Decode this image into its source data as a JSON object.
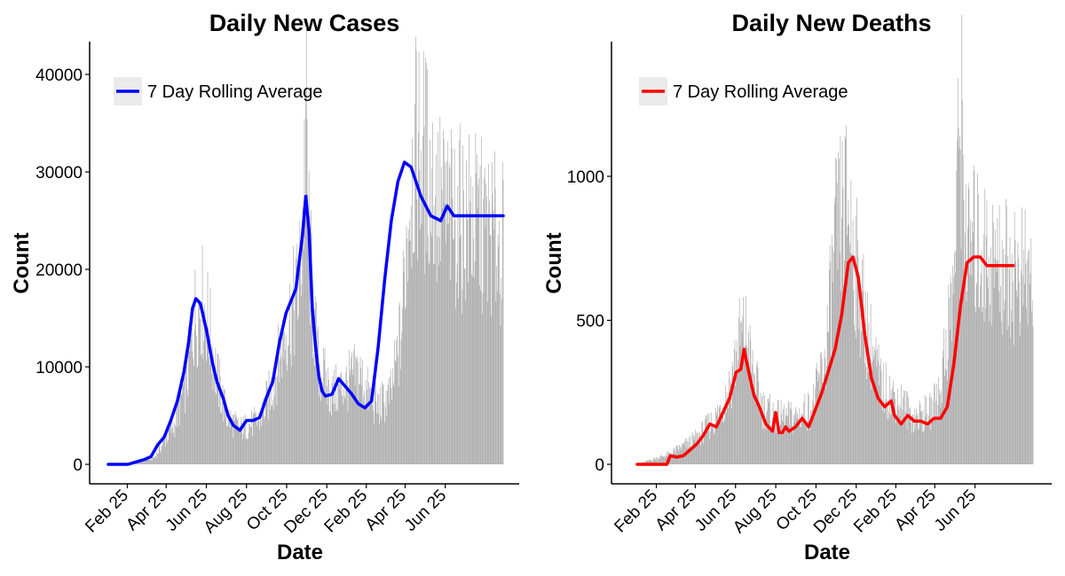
{
  "chart_data": [
    {
      "type": "bar",
      "title": "Daily New Cases",
      "xlabel": "Date",
      "ylabel": "Count",
      "x_tick_labels": [
        "Feb 25",
        "Apr 25",
        "Jun 25",
        "Aug 25",
        "Oct 25",
        "Dec 25",
        "Feb 25",
        "Apr 25",
        "Jun 25"
      ],
      "y_ticks": [
        0,
        10000,
        20000,
        30000,
        40000
      ],
      "ylim": [
        -1200,
        43500
      ],
      "x_range_days": [
        -29,
        631
      ],
      "grid": false,
      "bar_color": "#aaaaaa",
      "legend": {
        "position": "top-left",
        "entries": [
          {
            "label": "7 Day Rolling Average",
            "color": "#0000ff"
          }
        ]
      },
      "series": [
        {
          "name": "7 Day Rolling Average",
          "color": "#0000ff",
          "x_days": [
            0,
            15,
            30,
            45,
            55,
            65,
            75,
            85,
            95,
            105,
            115,
            122,
            128,
            133,
            140,
            150,
            158,
            165,
            175,
            182,
            190,
            200,
            210,
            220,
            230,
            240,
            250,
            260,
            270,
            285,
            295,
            300,
            305,
            310,
            315,
            320,
            325,
            330,
            340,
            350,
            360,
            370,
            380,
            390,
            400,
            410,
            420,
            430,
            440,
            450,
            460,
            475,
            490,
            505,
            515,
            525,
            535,
            545,
            555,
            560,
            565,
            570,
            575,
            580,
            585,
            590,
            595,
            600
          ],
          "values": [
            0,
            0,
            0,
            300,
            500,
            800,
            2000,
            2800,
            4500,
            6500,
            9500,
            12500,
            16000,
            17000,
            16500,
            13500,
            10500,
            8500,
            6700,
            5000,
            4000,
            3500,
            4500,
            4500,
            4800,
            6800,
            8500,
            12500,
            15500,
            18000,
            23500,
            27500,
            24000,
            16000,
            12000,
            9000,
            7500,
            7000,
            7200,
            8800,
            8000,
            7200,
            6200,
            5800,
            6500,
            12000,
            19000,
            25000,
            29000,
            31000,
            30500,
            27500,
            25500,
            25000,
            26500,
            25500,
            25500,
            25500,
            25500,
            25500,
            25500,
            25500,
            25500,
            25500,
            25500,
            25500,
            25500,
            25500
          ]
        }
      ],
      "daily_bars": {
        "x_days_step": 1,
        "x_days_start": 0,
        "x_days_end": 600,
        "profile_days": [
          0,
          40,
          70,
          100,
          120,
          130,
          140,
          150,
          165,
          180,
          200,
          230,
          250,
          270,
          290,
          297,
          300,
          303,
          310,
          320,
          340,
          360,
          380,
          395,
          410,
          430,
          445,
          455,
          460,
          470,
          480,
          500,
          520,
          550,
          600
        ],
        "profile_values": [
          0,
          100,
          800,
          4500,
          10000,
          16500,
          19000,
          17000,
          10000,
          5500,
          4000,
          5000,
          9000,
          15500,
          20000,
          30000,
          41000,
          30000,
          18000,
          11000,
          8000,
          9000,
          10500,
          8000,
          6500,
          8000,
          15000,
          28000,
          33000,
          36000,
          35000,
          30000,
          28000,
          28000,
          25000
        ]
      }
    },
    {
      "type": "bar",
      "title": "Daily New Deaths",
      "xlabel": "Date",
      "ylabel": "Count",
      "x_tick_labels": [
        "Feb 25",
        "Apr 25",
        "Jun 25",
        "Aug 25",
        "Oct 25",
        "Dec 25",
        "Feb 25",
        "Apr 25",
        "Jun 25"
      ],
      "y_ticks": [
        0,
        500,
        1000
      ],
      "ylim": [
        -40,
        1480
      ],
      "x_range_days": [
        -29,
        631
      ],
      "grid": false,
      "bar_color": "#aaaaaa",
      "legend": {
        "position": "top-left",
        "entries": [
          {
            "label": "7 Day Rolling Average",
            "color": "#ff0000"
          }
        ]
      },
      "series": [
        {
          "name": "7 Day Rolling Average",
          "color": "#ff0000",
          "x_days": [
            0,
            20,
            45,
            50,
            60,
            70,
            80,
            90,
            100,
            110,
            120,
            130,
            140,
            150,
            157,
            162,
            170,
            177,
            185,
            195,
            205,
            210,
            215,
            220,
            225,
            230,
            240,
            250,
            260,
            280,
            300,
            310,
            320,
            327,
            335,
            345,
            355,
            365,
            375,
            380,
            385,
            390,
            400,
            410,
            420,
            430,
            440,
            450,
            460,
            470,
            480,
            490,
            500,
            510,
            520,
            530,
            540,
            550,
            560,
            570
          ],
          "values": [
            0,
            0,
            0,
            30,
            25,
            30,
            50,
            70,
            100,
            140,
            130,
            180,
            230,
            320,
            330,
            400,
            310,
            240,
            200,
            140,
            115,
            180,
            110,
            110,
            130,
            115,
            130,
            160,
            130,
            250,
            400,
            520,
            700,
            720,
            650,
            450,
            300,
            230,
            200,
            210,
            220,
            170,
            140,
            170,
            150,
            150,
            140,
            160,
            160,
            200,
            350,
            550,
            700,
            720,
            720,
            690,
            690,
            690,
            690,
            690
          ]
        }
      ],
      "daily_bars": {
        "x_days_step": 1,
        "x_days_start": 0,
        "x_days_end": 600,
        "profile_days": [
          0,
          50,
          90,
          120,
          140,
          155,
          165,
          175,
          190,
          210,
          240,
          265,
          285,
          300,
          310,
          320,
          335,
          350,
          370,
          395,
          420,
          445,
          460,
          480,
          490,
          500,
          510,
          530,
          600
        ],
        "profile_values": [
          0,
          40,
          100,
          180,
          300,
          480,
          500,
          350,
          220,
          180,
          180,
          220,
          400,
          850,
          950,
          1000,
          700,
          500,
          300,
          250,
          180,
          200,
          300,
          700,
          1400,
          800,
          850,
          800,
          700
        ]
      }
    }
  ]
}
